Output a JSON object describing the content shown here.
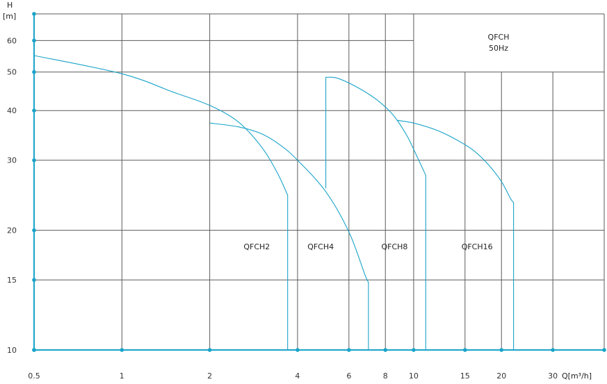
{
  "chart_data": {
    "type": "line",
    "title": "QFCH",
    "subtitle": "50Hz",
    "xlabel": "Q[m³/h]",
    "ylabel_unit": "H",
    "ylabel_bracket": "[m]",
    "x_scale": "log",
    "y_scale": "log",
    "xlim": [
      0.5,
      45
    ],
    "ylim": [
      10,
      70
    ],
    "x_ticks": [
      {
        "v": 0.5,
        "label": "0.5"
      },
      {
        "v": 1,
        "label": "1"
      },
      {
        "v": 2,
        "label": "2"
      },
      {
        "v": 4,
        "label": "4"
      },
      {
        "v": 6,
        "label": "6"
      },
      {
        "v": 8,
        "label": "8"
      },
      {
        "v": 10,
        "label": "10"
      },
      {
        "v": 15,
        "label": "15"
      },
      {
        "v": 20,
        "label": "20"
      },
      {
        "v": 30,
        "label": "30"
      }
    ],
    "y_ticks": [
      {
        "v": 10,
        "label": "10"
      },
      {
        "v": 15,
        "label": "15"
      },
      {
        "v": 20,
        "label": "20"
      },
      {
        "v": 30,
        "label": "30"
      },
      {
        "v": 40,
        "label": "40"
      },
      {
        "v": 50,
        "label": "50"
      },
      {
        "v": 60,
        "label": "60"
      }
    ],
    "grid": true,
    "series": [
      {
        "name": "QFCH2",
        "label_at": [
          2.9,
          18.2
        ],
        "points": [
          [
            0.5,
            55
          ],
          [
            1,
            49.5
          ],
          [
            1.5,
            44.5
          ],
          [
            2,
            41.2
          ],
          [
            2.5,
            37.5
          ],
          [
            3,
            32.5
          ],
          [
            3.4,
            28
          ],
          [
            3.7,
            24.5
          ],
          [
            3.7,
            10
          ]
        ]
      },
      {
        "name": "QFCH4",
        "label_at": [
          4.8,
          18.2
        ],
        "points": [
          [
            2,
            37.2
          ],
          [
            2.5,
            36.4
          ],
          [
            3,
            35
          ],
          [
            3.5,
            32.7
          ],
          [
            4,
            30
          ],
          [
            5,
            25
          ],
          [
            6,
            19.8
          ],
          [
            6.8,
            15.5
          ],
          [
            7,
            14.8
          ],
          [
            7,
            10
          ]
        ]
      },
      {
        "name": "QFCH8",
        "label_at": [
          8.6,
          18.2
        ],
        "points": [
          [
            5,
            25.5
          ],
          [
            5,
            48.5
          ],
          [
            5.5,
            48.2
          ],
          [
            6.5,
            45.5
          ],
          [
            7.5,
            42.5
          ],
          [
            8.5,
            39
          ],
          [
            9.5,
            34.5
          ],
          [
            10.3,
            30.5
          ],
          [
            11,
            27.5
          ],
          [
            11,
            10
          ]
        ]
      },
      {
        "name": "QFCH16",
        "label_at": [
          16.5,
          18.2
        ],
        "points": [
          [
            8.8,
            37.8
          ],
          [
            10,
            37.2
          ],
          [
            12,
            35.7
          ],
          [
            14,
            33.8
          ],
          [
            16,
            31.8
          ],
          [
            18,
            29.3
          ],
          [
            20,
            26.5
          ],
          [
            21.5,
            24
          ],
          [
            22,
            23.5
          ],
          [
            22,
            10
          ]
        ]
      }
    ]
  }
}
